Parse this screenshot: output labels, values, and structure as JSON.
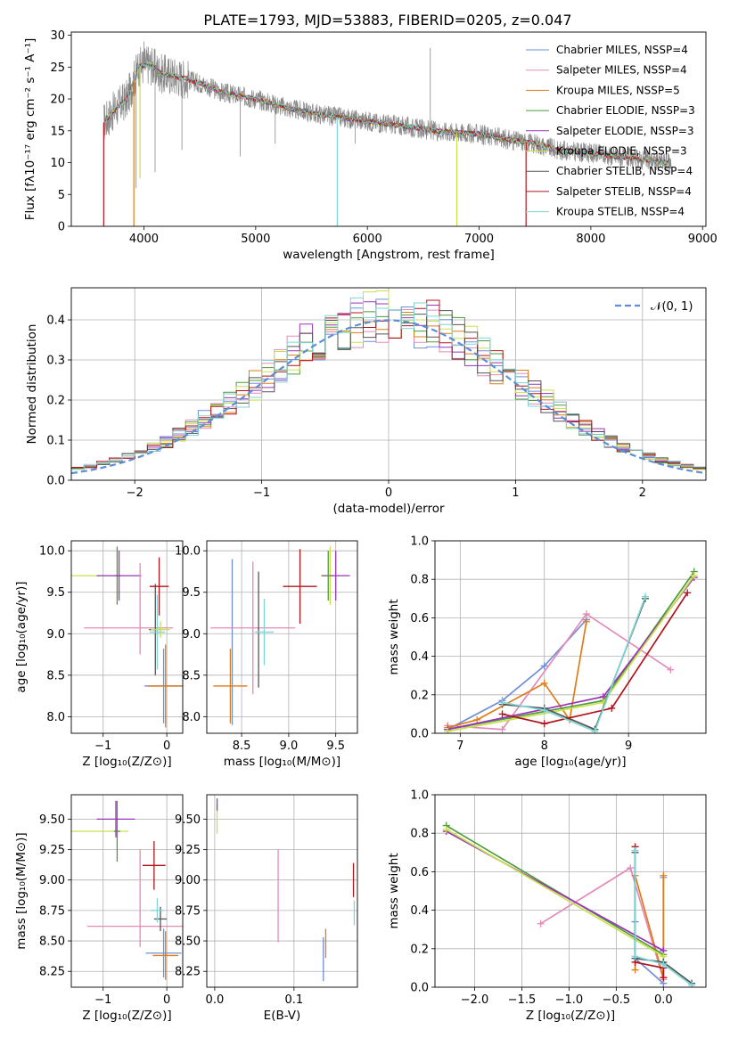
{
  "title": "PLATE=1793, MJD=53883, FIBERID=0205, z=0.047",
  "colors": {
    "Chabrier MILES": "#6f8fd8",
    "Salpeter MILES": "#e58ab8",
    "Kroupa MILES": "#dd7d1a",
    "Chabrier ELODIE": "#4f9a3e",
    "Salpeter ELODIE": "#9a34b8",
    "Kroupa ELODIE": "#c8e04a",
    "Chabrier STELIB": "#555555",
    "Salpeter STELIB": "#b0141c",
    "Kroupa STELIB": "#7ed6d6",
    "data": "#888888",
    "normal": "#5b8ed6"
  },
  "chart_data": [
    {
      "id": "spectrum",
      "type": "line",
      "xlabel": "wavelength [Angstrom, rest frame]",
      "ylabel": "Flux [fλ10⁻¹⁷ erg cm⁻² s⁻¹ A⁻¹]",
      "xlim": [
        3350,
        9030
      ],
      "ylim": [
        0,
        30.5
      ],
      "xticks": [
        4000,
        5000,
        6000,
        7000,
        8000,
        9000
      ],
      "yticks": [
        0,
        5,
        10,
        15,
        20,
        25,
        30
      ],
      "legend_position": "top-right",
      "legend": [
        "Chabrier MILES, NSSP=4",
        "Salpeter MILES, NSSP=4",
        "Kroupa MILES, NSSP=5",
        "Chabrier ELODIE, NSSP=3",
        "Salpeter ELODIE, NSSP=3",
        "Kroupa ELODIE, NSSP=3",
        "Chabrier STELIB, NSSP=4",
        "Salpeter STELIB, NSSP=4",
        "Kroupa STELIB, NSSP=4"
      ],
      "continuum": {
        "x": [
          3650,
          3750,
          3850,
          3950,
          4050,
          4150,
          4300,
          4500,
          4700,
          5000,
          5300,
          5600,
          6000,
          6300,
          6600,
          7000,
          7300,
          7500,
          7700,
          8000,
          8300,
          8600,
          8700
        ],
        "y": [
          16.5,
          18.5,
          20,
          25,
          25.5,
          24,
          23.5,
          22.5,
          21,
          20,
          18.5,
          17.5,
          16.5,
          15.8,
          15,
          14.5,
          13.5,
          13,
          12,
          11.5,
          10.8,
          10.2,
          10
        ]
      },
      "data_spikes": [
        {
          "x": 3930,
          "y": 6
        },
        {
          "x": 4100,
          "y": 8.5
        },
        {
          "x": 4340,
          "y": 12
        },
        {
          "x": 4861,
          "y": 11
        },
        {
          "x": 5175,
          "y": 13
        },
        {
          "x": 5890,
          "y": 13
        },
        {
          "x": 6563,
          "y": 28
        },
        {
          "x": 4000,
          "y": 29
        }
      ],
      "model_drops": [
        {
          "x": 3640,
          "y": 0,
          "series": "Salpeter STELIB"
        },
        {
          "x": 3910,
          "y": 0,
          "series": "Kroupa MILES"
        },
        {
          "x": 3965,
          "y": 7.5,
          "series": "Kroupa ELODIE"
        },
        {
          "x": 5730,
          "y": 0,
          "series": "Kroupa STELIB"
        },
        {
          "x": 6800,
          "y": 0,
          "series": "Kroupa ELODIE"
        },
        {
          "x": 7420,
          "y": 0,
          "series": "Salpeter STELIB"
        }
      ]
    },
    {
      "id": "residuals",
      "type": "line",
      "xlabel": "(data-model)/error",
      "ylabel": "Normed distribution",
      "xlim": [
        -2.5,
        2.5
      ],
      "ylim": [
        0,
        0.48
      ],
      "xticks": [
        -2,
        -1,
        0,
        1,
        2
      ],
      "yticks": [
        0.0,
        0.1,
        0.2,
        0.3,
        0.4
      ],
      "legend_position": "top-right",
      "legend": [
        "𝒩(0, 1)"
      ],
      "bin_width": 0.1,
      "normal": {
        "mean": 0,
        "sigma": 1
      }
    },
    {
      "id": "Z-age",
      "type": "scatter",
      "xlabel": "Z [log₁₀(Z/Z⊙)]",
      "ylabel": "age  [log₁₀(age/yr)]",
      "xlim": [
        -1.5,
        0.25
      ],
      "ylim": [
        7.8,
        10.12
      ],
      "xticks": [
        -1,
        0
      ],
      "yticks": [
        8.0,
        8.5,
        9.0,
        9.5,
        10.0
      ],
      "crosses": [
        {
          "series": "Kroupa ELODIE",
          "x": -1.1,
          "y": 9.7,
          "ex": 0.45,
          "ey": 0
        },
        {
          "series": "Chabrier ELODIE",
          "x": -0.78,
          "y": 9.7,
          "ex": 0.05,
          "ey": 0.35
        },
        {
          "series": "Salpeter ELODIE",
          "x": -0.75,
          "y": 9.7,
          "ex": 0.35,
          "ey": 0.3
        },
        {
          "series": "Salpeter MILES",
          "x": -0.6,
          "y": 9.07,
          "ex": 0.7,
          "ey": 0
        },
        {
          "series": "Salpeter MILES",
          "x": -0.42,
          "y": 9.3,
          "ex": 0,
          "ey": 0.55
        },
        {
          "series": "Chabrier MILES",
          "x": -0.05,
          "y": 8.37,
          "ex": 0.3,
          "ey": 0.45
        },
        {
          "series": "Kroupa MILES",
          "x": -0.02,
          "y": 8.37,
          "ex": 0.28,
          "ey": 0.5
        },
        {
          "series": "Chabrier STELIB",
          "x": -0.18,
          "y": 9.05,
          "ex": 0.1,
          "ey": 0.55
        },
        {
          "series": "Kroupa STELIB",
          "x": -0.15,
          "y": 9.02,
          "ex": 0.12,
          "ey": 0.45
        },
        {
          "series": "Salpeter STELIB",
          "x": -0.12,
          "y": 9.57,
          "ex": 0.15,
          "ey": 0.35
        },
        {
          "series": "Kroupa ELODIE",
          "x": -0.1,
          "y": 9.05,
          "ex": 0.15,
          "ey": 0.1
        }
      ]
    },
    {
      "id": "mass-age",
      "type": "scatter",
      "xlabel": "mass [log₁₀(M/M⊙)]",
      "ylabel": "",
      "xlim": [
        8.13,
        9.73
      ],
      "ylim": [
        7.8,
        10.12
      ],
      "xticks": [
        8.5,
        9.0,
        9.5
      ],
      "yticks": [
        8.0,
        8.5,
        9.0,
        9.5,
        10.0
      ],
      "crosses": [
        {
          "series": "Chabrier MILES",
          "x": 8.4,
          "y": 8.9,
          "ex": 0,
          "ey": 1.0
        },
        {
          "series": "Kroupa MILES",
          "x": 8.38,
          "y": 8.37,
          "ex": 0.18,
          "ey": 0.45
        },
        {
          "series": "Salpeter MILES",
          "x": 8.62,
          "y": 9.07,
          "ex": 0.45,
          "ey": 0.8
        },
        {
          "series": "Chabrier STELIB",
          "x": 8.68,
          "y": 9.05,
          "ex": 0,
          "ey": 0.7
        },
        {
          "series": "Kroupa STELIB",
          "x": 8.74,
          "y": 9.02,
          "ex": 0.1,
          "ey": 0.4
        },
        {
          "series": "Salpeter STELIB",
          "x": 9.12,
          "y": 9.57,
          "ex": 0.18,
          "ey": 0.45
        },
        {
          "series": "Kroupa ELODIE",
          "x": 9.44,
          "y": 9.7,
          "ex": 0.1,
          "ey": 0.35
        },
        {
          "series": "Salpeter ELODIE",
          "x": 9.5,
          "y": 9.7,
          "ex": 0.15,
          "ey": 0.3
        },
        {
          "series": "Chabrier ELODIE",
          "x": 9.42,
          "y": 9.7,
          "ex": 0.02,
          "ey": 0.3
        }
      ]
    },
    {
      "id": "age-weight",
      "type": "line",
      "xlabel": "age  [log₁₀(age/yr)]",
      "ylabel": "mass weight",
      "xlim": [
        6.7,
        9.92
      ],
      "ylim": [
        0,
        1.0
      ],
      "xticks": [
        7,
        8,
        9
      ],
      "yticks": [
        0.0,
        0.2,
        0.4,
        0.6,
        0.8,
        1.0
      ],
      "series": [
        {
          "name": "Chabrier MILES",
          "x": [
            6.85,
            7.5,
            8.0,
            8.5
          ],
          "y": [
            0.02,
            0.17,
            0.35,
            0.59
          ]
        },
        {
          "name": "Salpeter MILES",
          "x": [
            6.85,
            7.5,
            8.5,
            9.5
          ],
          "y": [
            0.04,
            0.02,
            0.62,
            0.33
          ]
        },
        {
          "name": "Kroupa MILES",
          "x": [
            6.85,
            7.2,
            8.0,
            8.3,
            8.5
          ],
          "y": [
            0.03,
            0.07,
            0.26,
            0.07,
            0.58
          ]
        },
        {
          "name": "Chabrier ELODIE",
          "x": [
            6.85,
            8.7,
            9.78
          ],
          "y": [
            0.02,
            0.17,
            0.84
          ]
        },
        {
          "name": "Salpeter ELODIE",
          "x": [
            6.85,
            8.7,
            9.78
          ],
          "y": [
            0.02,
            0.19,
            0.81
          ]
        },
        {
          "name": "Kroupa ELODIE",
          "x": [
            6.85,
            8.7,
            9.78
          ],
          "y": [
            0.01,
            0.16,
            0.82
          ]
        },
        {
          "name": "Chabrier STELIB",
          "x": [
            7.5,
            8.0,
            8.6,
            9.2
          ],
          "y": [
            0.15,
            0.13,
            0.02,
            0.7
          ]
        },
        {
          "name": "Salpeter STELIB",
          "x": [
            7.5,
            8.0,
            8.8,
            9.7
          ],
          "y": [
            0.1,
            0.05,
            0.13,
            0.73
          ]
        },
        {
          "name": "Kroupa STELIB",
          "x": [
            7.5,
            8.0,
            8.6,
            9.2
          ],
          "y": [
            0.16,
            0.12,
            0.01,
            0.71
          ]
        }
      ]
    },
    {
      "id": "Z-mass",
      "type": "scatter",
      "xlabel": "Z [log₁₀(Z/Z⊙)]",
      "ylabel": "mass [log₁₀(M/M⊙)]",
      "xlim": [
        -1.5,
        0.25
      ],
      "ylim": [
        8.12,
        9.7
      ],
      "xticks": [
        -1,
        0
      ],
      "yticks": [
        8.25,
        8.5,
        8.75,
        9.0,
        9.25,
        9.5
      ],
      "crosses": [
        {
          "series": "Kroupa ELODIE",
          "x": -1.05,
          "y": 9.4,
          "ex": 0.45,
          "ey": 0
        },
        {
          "series": "Chabrier ELODIE",
          "x": -0.78,
          "y": 9.4,
          "ex": 0.05,
          "ey": 0.25
        },
        {
          "series": "Salpeter ELODIE",
          "x": -0.8,
          "y": 9.5,
          "ex": 0.3,
          "ey": 0.15
        },
        {
          "series": "Salpeter MILES",
          "x": -0.5,
          "y": 8.62,
          "ex": 0.75,
          "ey": 0
        },
        {
          "series": "Salpeter MILES",
          "x": -0.42,
          "y": 8.85,
          "ex": 0,
          "ey": 0.4
        },
        {
          "series": "Salpeter STELIB",
          "x": -0.2,
          "y": 9.12,
          "ex": 0.18,
          "ey": 0.2
        },
        {
          "series": "Chabrier STELIB",
          "x": -0.1,
          "y": 8.68,
          "ex": 0.1,
          "ey": 0.1
        },
        {
          "series": "Kroupa STELIB",
          "x": -0.15,
          "y": 8.75,
          "ex": 0.1,
          "ey": 0.1
        },
        {
          "series": "Chabrier MILES",
          "x": -0.05,
          "y": 8.4,
          "ex": 0.28,
          "ey": 0.2
        },
        {
          "series": "Kroupa MILES",
          "x": -0.02,
          "y": 8.38,
          "ex": 0.2,
          "ey": 0.2
        }
      ]
    },
    {
      "id": "ebv-mass",
      "type": "scatter",
      "xlabel": "E(B-V)",
      "ylabel": "",
      "xlim": [
        -0.01,
        0.18
      ],
      "ylim": [
        8.12,
        9.7
      ],
      "xticks": [
        0.0,
        0.1
      ],
      "yticks": [
        8.25,
        8.5,
        8.75,
        9.0,
        9.25,
        9.5
      ],
      "crosses": [
        {
          "series": "Kroupa ELODIE",
          "x": 0.003,
          "y": 9.5,
          "ex": 0,
          "ey": 0.12
        },
        {
          "series": "Salpeter ELODIE",
          "x": 0.003,
          "y": 9.62,
          "ex": 0,
          "ey": 0.05
        },
        {
          "series": "Salpeter MILES",
          "x": 0.08,
          "y": 8.87,
          "ex": 0,
          "ey": 0.38
        },
        {
          "series": "Chabrier MILES",
          "x": 0.137,
          "y": 8.35,
          "ex": 0,
          "ey": 0.18
        },
        {
          "series": "Kroupa MILES",
          "x": 0.14,
          "y": 8.48,
          "ex": 0,
          "ey": 0.12
        },
        {
          "series": "Salpeter STELIB",
          "x": 0.175,
          "y": 9.0,
          "ex": 0,
          "ey": 0.14
        },
        {
          "series": "Kroupa STELIB",
          "x": 0.176,
          "y": 8.73,
          "ex": 0,
          "ey": 0.1
        }
      ]
    },
    {
      "id": "Z-weight",
      "type": "line",
      "xlabel": "Z [log₁₀(Z/Z⊙)]",
      "ylabel": "mass weight",
      "xlim": [
        -2.42,
        0.45
      ],
      "ylim": [
        0,
        1.0
      ],
      "xticks": [
        -2.0,
        -1.5,
        -1.0,
        -0.5,
        0.0
      ],
      "yticks": [
        0.0,
        0.2,
        0.4,
        0.6,
        0.8,
        1.0
      ],
      "series": [
        {
          "name": "Chabrier MILES",
          "x": [
            -0.3,
            -0.3,
            0.0,
            0.0
          ],
          "y": [
            0.34,
            0.15,
            0.02,
            0.57
          ]
        },
        {
          "name": "Salpeter MILES",
          "x": [
            -1.3,
            -0.35,
            0.0
          ],
          "y": [
            0.33,
            0.62,
            0.04
          ]
        },
        {
          "name": "Kroupa MILES",
          "x": [
            -0.3,
            -0.3,
            0.0,
            0.0
          ],
          "y": [
            0.09,
            0.58,
            0.05,
            0.58
          ]
        },
        {
          "name": "Chabrier ELODIE",
          "x": [
            -2.3,
            0.0
          ],
          "y": [
            0.84,
            0.17
          ]
        },
        {
          "name": "Salpeter ELODIE",
          "x": [
            -2.3,
            0.0
          ],
          "y": [
            0.81,
            0.19
          ]
        },
        {
          "name": "Kroupa ELODIE",
          "x": [
            -2.3,
            0.0
          ],
          "y": [
            0.82,
            0.16
          ]
        },
        {
          "name": "Chabrier STELIB",
          "x": [
            -0.3,
            -0.3,
            0.0,
            0.3
          ],
          "y": [
            0.7,
            0.15,
            0.13,
            0.02
          ]
        },
        {
          "name": "Salpeter STELIB",
          "x": [
            -0.3,
            -0.3,
            0.0,
            0.0
          ],
          "y": [
            0.73,
            0.13,
            0.1,
            0.05
          ]
        },
        {
          "name": "Kroupa STELIB",
          "x": [
            -0.3,
            -0.3,
            0.0,
            0.3
          ],
          "y": [
            0.71,
            0.16,
            0.12,
            0.01
          ]
        }
      ]
    }
  ]
}
